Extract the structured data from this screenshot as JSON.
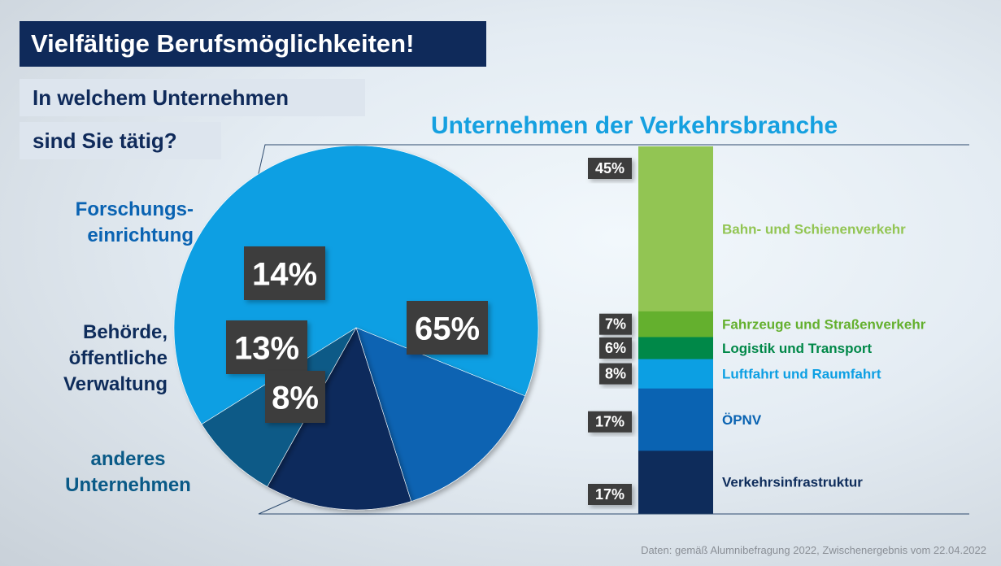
{
  "title": "Vielfältige Berufsmöglichkeiten!",
  "question": {
    "line1": "In welchem Unternehmen",
    "line2": "sind Sie tätig?"
  },
  "subtitle": "Unternehmen der Verkehrsbranche",
  "footnote": "Daten: gemäß Alumnibefragung 2022, Zwischenergebnis vom 22.04.2022",
  "chart_data": [
    {
      "type": "pie",
      "title": "In welchem Unternehmen sind Sie tätig?",
      "slices": [
        {
          "label": "Unternehmen der Verkehrsbranche",
          "value": 65,
          "value_label": "65%",
          "color": "#0c9fe3"
        },
        {
          "label": "Forschungs-\neinrichtung",
          "value": 14,
          "value_label": "14%",
          "color": "#0a63b2"
        },
        {
          "label": "Behörde,\nöffentliche\nVerwaltung",
          "value": 13,
          "value_label": "13%",
          "color": "#0e2c5b"
        },
        {
          "label": "anderes\nUnternehmen",
          "value": 8,
          "value_label": "8%",
          "color": "#0a5a87"
        }
      ]
    },
    {
      "type": "bar",
      "stacked": true,
      "title": "Unternehmen der Verkehrsbranche",
      "segments": [
        {
          "label": "Bahn- und Schienenverkehr",
          "value": 45,
          "value_label": "45%",
          "color": "#92c553"
        },
        {
          "label": "Fahrzeuge und Straßenverkehr",
          "value": 7,
          "value_label": "7%",
          "color": "#64b02e"
        },
        {
          "label": "Logistik und Transport",
          "value": 6,
          "value_label": "6%",
          "color": "#008848"
        },
        {
          "label": "Luftfahrt und Raumfahrt",
          "value": 8,
          "value_label": "8%",
          "color": "#0c9fe3"
        },
        {
          "label": "ÖPNV",
          "value": 17,
          "value_label": "17%",
          "color": "#0a63b2"
        },
        {
          "label": "Verkehrsinfrastruktur",
          "value": 17,
          "value_label": "17%",
          "color": "#0e2c5b"
        }
      ]
    }
  ]
}
